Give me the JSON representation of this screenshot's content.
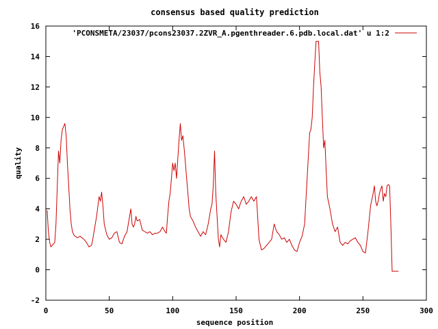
{
  "chart_data": {
    "type": "line",
    "title": "consensus based quality prediction",
    "xlabel": "sequence position",
    "ylabel": "quality",
    "xlim": [
      0,
      300
    ],
    "ylim": [
      -2,
      16
    ],
    "xticks": [
      0,
      50,
      100,
      150,
      200,
      250,
      300
    ],
    "yticks": [
      -2,
      0,
      2,
      4,
      6,
      8,
      10,
      12,
      14,
      16
    ],
    "grid": false,
    "legend_position": "top-right",
    "series": [
      {
        "name": "'PCONSMETA/23037/pcons23037.2ZVR_A.pgenthreader.6.pdb.local.dat' u 1:2",
        "color": "#cc0000",
        "x": [
          1,
          2,
          3,
          4,
          5,
          6,
          7,
          8,
          9,
          10,
          11,
          12,
          13,
          14,
          15,
          16,
          17,
          18,
          19,
          20,
          21,
          22,
          23,
          25,
          27,
          30,
          32,
          34,
          36,
          37,
          38,
          40,
          42,
          43,
          44,
          45,
          46,
          48,
          50,
          52,
          54,
          56,
          58,
          60,
          62,
          64,
          66,
          67,
          68,
          69,
          70,
          71,
          72,
          74,
          76,
          78,
          80,
          82,
          84,
          86,
          88,
          90,
          92,
          94,
          95,
          96,
          97,
          98,
          99,
          100,
          101,
          102,
          103,
          104,
          105,
          106,
          107,
          108,
          109,
          110,
          111,
          112,
          113,
          114,
          116,
          118,
          120,
          122,
          124,
          126,
          128,
          130,
          131,
          132,
          133,
          134,
          135,
          136,
          137,
          138,
          140,
          142,
          144,
          146,
          148,
          150,
          152,
          154,
          156,
          158,
          160,
          162,
          164,
          166,
          167,
          168,
          170,
          172,
          174,
          176,
          178,
          180,
          182,
          184,
          186,
          188,
          190,
          192,
          194,
          196,
          198,
          200,
          202,
          204,
          205,
          206,
          207,
          208,
          209,
          210,
          211,
          212,
          213,
          214,
          215,
          216,
          217,
          218,
          219,
          220,
          221,
          222,
          224,
          226,
          228,
          230,
          232,
          234,
          236,
          238,
          240,
          242,
          244,
          246,
          248,
          250,
          252,
          254,
          256,
          258,
          259,
          260,
          261,
          262,
          263,
          264,
          265,
          266,
          267,
          268,
          269,
          270,
          271,
          272,
          273,
          274,
          276,
          278
        ],
        "y": [
          3.9,
          2.5,
          1.8,
          1.5,
          1.6,
          1.7,
          1.8,
          3.0,
          5.5,
          7.8,
          7.0,
          8.5,
          9.2,
          9.4,
          9.6,
          8.8,
          7.0,
          5.5,
          4.0,
          3.0,
          2.5,
          2.3,
          2.2,
          2.1,
          2.2,
          2.0,
          1.8,
          1.5,
          1.6,
          2.0,
          2.5,
          3.5,
          4.8,
          4.5,
          5.1,
          4.2,
          3.0,
          2.3,
          2.0,
          2.1,
          2.4,
          2.5,
          1.8,
          1.7,
          2.2,
          2.5,
          3.5,
          4.0,
          3.0,
          2.8,
          3.0,
          3.5,
          3.2,
          3.3,
          2.6,
          2.5,
          2.4,
          2.5,
          2.3,
          2.4,
          2.4,
          2.5,
          2.8,
          2.5,
          2.4,
          3.5,
          4.5,
          5.0,
          6.0,
          7.0,
          6.5,
          7.0,
          6.0,
          7.2,
          8.5,
          9.6,
          8.5,
          8.8,
          8.0,
          7.0,
          6.0,
          5.0,
          4.0,
          3.5,
          3.2,
          2.8,
          2.5,
          2.2,
          2.5,
          2.3,
          3.0,
          4.0,
          4.3,
          5.5,
          7.8,
          5.0,
          3.5,
          2.0,
          1.5,
          2.3,
          2.0,
          1.8,
          2.5,
          3.8,
          4.5,
          4.3,
          4.0,
          4.5,
          4.8,
          4.3,
          4.5,
          4.8,
          4.5,
          4.8,
          3.5,
          2.0,
          1.3,
          1.4,
          1.6,
          1.8,
          2.0,
          3.0,
          2.5,
          2.3,
          2.0,
          2.1,
          1.8,
          2.0,
          1.6,
          1.3,
          1.2,
          1.8,
          2.2,
          3.0,
          4.5,
          6.0,
          7.5,
          9.0,
          9.2,
          10.0,
          12.0,
          13.5,
          15.0,
          15.0,
          15.0,
          13.0,
          12.0,
          10.0,
          8.0,
          8.5,
          6.5,
          4.8,
          4.0,
          3.0,
          2.5,
          2.8,
          1.8,
          1.6,
          1.8,
          1.7,
          1.9,
          2.0,
          2.1,
          1.8,
          1.6,
          1.2,
          1.1,
          2.5,
          4.2,
          5.0,
          5.5,
          4.5,
          4.2,
          4.5,
          5.0,
          5.3,
          5.5,
          4.5,
          5.0,
          4.8,
          5.5,
          5.6,
          5.5,
          3.0,
          -0.1,
          -0.1,
          -0.1,
          -0.1
        ]
      }
    ]
  }
}
